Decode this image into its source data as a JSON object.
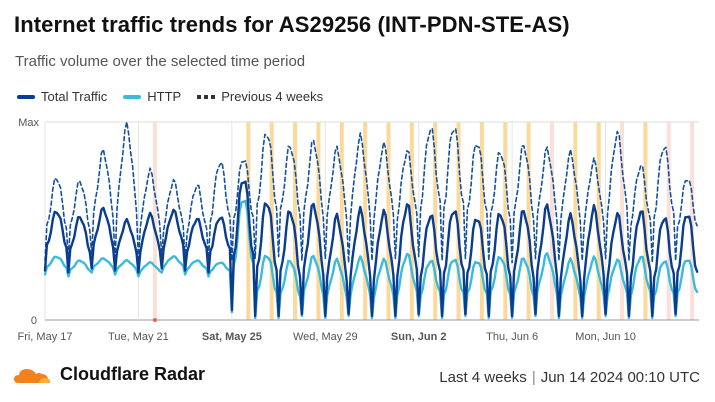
{
  "header": {
    "title": "Internet traffic trends for AS29256 (INT-PDN-STE-AS)",
    "subtitle": "Traffic volume over the selected time period"
  },
  "footer": {
    "brand": "Cloudflare Radar",
    "range": "Last 4 weeks",
    "separator": "|",
    "timestamp": "Jun 14 2024 00:10 UTC"
  },
  "colors": {
    "total": "#0a3d8f",
    "http": "#3bbbdc",
    "previous": "#14509e",
    "holiday": "#fbd99b",
    "weekend": "#fbe0d8"
  },
  "chart_data": {
    "type": "line",
    "ylim": [
      0,
      1
    ],
    "y_tick_labels": [
      "0",
      "Max"
    ],
    "x_range": [
      "2024-05-17",
      "2024-06-13"
    ],
    "x_ticks": [
      {
        "label": "Fri, May 17",
        "date": "2024-05-17",
        "bold": false
      },
      {
        "label": "Tue, May 21",
        "date": "2024-05-21",
        "bold": false
      },
      {
        "label": "Sat, May 25",
        "date": "2024-05-25",
        "bold": true
      },
      {
        "label": "Wed, May 29",
        "date": "2024-05-29",
        "bold": false
      },
      {
        "label": "Sun, Jun 2",
        "date": "2024-06-02",
        "bold": true
      },
      {
        "label": "Thu, Jun 6",
        "date": "2024-06-06",
        "bold": false
      },
      {
        "label": "Mon, Jun 10",
        "date": "2024-06-10",
        "bold": false
      }
    ],
    "legend": [
      "Total Traffic",
      "HTTP",
      "Previous 4 weeks"
    ],
    "series": [
      {
        "name": "Total Traffic",
        "style": "solid",
        "daily_peak": [
          0.55,
          0.52,
          0.56,
          0.5,
          0.53,
          0.55,
          0.51,
          0.52,
          0.72,
          0.6,
          0.55,
          0.58,
          0.52,
          0.55,
          0.54,
          0.58,
          0.53,
          0.56,
          0.52,
          0.54,
          0.55,
          0.57,
          0.52,
          0.56,
          0.53,
          0.55,
          0.52,
          0.54
        ],
        "daily_low": [
          0.25,
          0.24,
          0.26,
          0.25,
          0.24,
          0.26,
          0.25,
          0.24,
          0.05,
          0.02,
          0.02,
          0.03,
          0.02,
          0.03,
          0.02,
          0.02,
          0.03,
          0.02,
          0.03,
          0.02,
          0.02,
          0.03,
          0.02,
          0.02,
          0.03,
          0.02,
          0.02,
          0.03
        ]
      },
      {
        "name": "HTTP",
        "style": "solid",
        "daily_peak": [
          0.32,
          0.3,
          0.31,
          0.3,
          0.29,
          0.32,
          0.3,
          0.29,
          0.62,
          0.33,
          0.3,
          0.32,
          0.3,
          0.31,
          0.3,
          0.33,
          0.3,
          0.31,
          0.3,
          0.32,
          0.31,
          0.33,
          0.3,
          0.31,
          0.3,
          0.32,
          0.3,
          0.31
        ],
        "daily_low": [
          0.23,
          0.22,
          0.24,
          0.23,
          0.22,
          0.24,
          0.23,
          0.22,
          0.04,
          0.01,
          0.01,
          0.02,
          0.01,
          0.02,
          0.01,
          0.01,
          0.02,
          0.01,
          0.02,
          0.01,
          0.01,
          0.02,
          0.01,
          0.01,
          0.02,
          0.01,
          0.01,
          0.02
        ]
      },
      {
        "name": "Previous 4 weeks",
        "style": "dashed",
        "daily_peak": [
          0.72,
          0.7,
          0.85,
          0.98,
          0.75,
          0.7,
          0.68,
          0.8,
          0.82,
          0.95,
          0.88,
          0.9,
          0.86,
          0.92,
          0.88,
          0.85,
          0.97,
          0.98,
          0.9,
          0.85,
          0.88,
          0.86,
          0.84,
          0.8,
          0.94,
          0.78,
          0.88,
          0.72
        ],
        "daily_low": [
          0.3,
          0.31,
          0.33,
          0.3,
          0.31,
          0.32,
          0.3,
          0.31,
          0.3,
          0.31,
          0.32,
          0.3,
          0.31,
          0.29,
          0.3,
          0.31,
          0.32,
          0.3,
          0.31,
          0.3,
          0.29,
          0.31,
          0.3,
          0.3,
          0.31,
          0.3,
          0.29,
          0.3
        ]
      }
    ],
    "highlight_bands": [
      {
        "date": "2024-05-21",
        "kind": "weekend"
      },
      {
        "date": "2024-05-25",
        "kind": "holiday"
      },
      {
        "date": "2024-05-26",
        "kind": "holiday"
      },
      {
        "date": "2024-05-27",
        "kind": "holiday"
      },
      {
        "date": "2024-05-28",
        "kind": "holiday"
      },
      {
        "date": "2024-05-29",
        "kind": "holiday"
      },
      {
        "date": "2024-05-30",
        "kind": "holiday"
      },
      {
        "date": "2024-05-31",
        "kind": "holiday"
      },
      {
        "date": "2024-06-01",
        "kind": "holiday"
      },
      {
        "date": "2024-06-02",
        "kind": "holiday"
      },
      {
        "date": "2024-06-03",
        "kind": "holiday"
      },
      {
        "date": "2024-06-04",
        "kind": "holiday"
      },
      {
        "date": "2024-06-05",
        "kind": "holiday"
      },
      {
        "date": "2024-06-06",
        "kind": "holiday"
      },
      {
        "date": "2024-06-07",
        "kind": "weekend"
      },
      {
        "date": "2024-06-08",
        "kind": "holiday"
      },
      {
        "date": "2024-06-09",
        "kind": "holiday"
      },
      {
        "date": "2024-06-10",
        "kind": "weekend"
      },
      {
        "date": "2024-06-11",
        "kind": "holiday"
      },
      {
        "date": "2024-06-12",
        "kind": "weekend"
      },
      {
        "date": "2024-06-13",
        "kind": "weekend"
      }
    ],
    "grid": true
  }
}
